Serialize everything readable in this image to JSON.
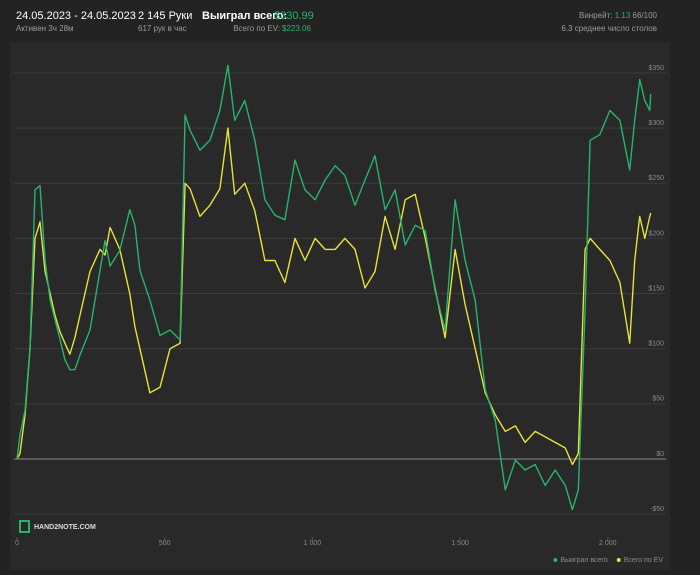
{
  "header": {
    "date_range": "24.05.2023 - 24.05.2023",
    "active": "Активен 3ч 28м",
    "hands": "2 145 Руки",
    "hands_per_hour": "617 рук в час",
    "won_label": "Выиграл всего:",
    "won_value": "$330.99",
    "ev_label": "Всего по EV:",
    "ev_value": "$223.06",
    "winrate_label": "Винрейт:",
    "winrate_value": "1.13",
    "winrate_extra": "66/100",
    "tables": "6.3 среднее число столов"
  },
  "logo": "HAND2NOTE.COM",
  "chart_data": {
    "type": "line",
    "x": [
      0,
      10,
      27,
      44,
      61,
      78,
      95,
      112,
      129,
      146,
      162,
      179,
      196,
      213,
      247,
      281,
      298,
      315,
      348,
      382,
      399,
      416,
      450,
      484,
      518,
      552,
      569,
      586,
      619,
      653,
      687,
      714,
      737,
      771,
      805,
      839,
      873,
      907,
      941,
      975,
      1009,
      1043,
      1077,
      1110,
      1144,
      1178,
      1212,
      1246,
      1280,
      1314,
      1348,
      1382,
      1415,
      1449,
      1483,
      1517,
      1551,
      1585,
      1619,
      1653,
      1687,
      1720,
      1754,
      1788,
      1822,
      1856,
      1880,
      1900,
      1923,
      1940,
      1973,
      2007,
      2041,
      2074,
      2091,
      2108,
      2125,
      2142,
      2145
    ],
    "series": [
      {
        "name": "Выиграл всего",
        "color": "#27b36e",
        "values": [
          0,
          22,
          44,
          99,
          244,
          248,
          180,
          144,
          126,
          108,
          90,
          81,
          81,
          94,
          117,
          171,
          198,
          175,
          189,
          226,
          212,
          171,
          144,
          112,
          117,
          108,
          312,
          298,
          280,
          289,
          316,
          357,
          307,
          325,
          289,
          235,
          221,
          217,
          271,
          244,
          235,
          253,
          266,
          257,
          230,
          253,
          275,
          226,
          244,
          194,
          212,
          207,
          153,
          117,
          235,
          180,
          144,
          63,
          35,
          -28,
          -1,
          -10,
          -5,
          -24,
          -10,
          -24,
          -46,
          -28,
          135,
          289,
          294,
          316,
          307,
          262,
          307,
          344,
          325,
          316,
          330.99
        ]
      },
      {
        "name": "Всего по EV",
        "color": "#e6e238",
        "values": [
          0,
          5,
          40,
          100,
          200,
          215,
          170,
          150,
          130,
          115,
          105,
          95,
          110,
          130,
          170,
          190,
          185,
          210,
          190,
          150,
          120,
          100,
          60,
          65,
          100,
          105,
          250,
          245,
          220,
          230,
          245,
          300,
          240,
          250,
          225,
          180,
          180,
          160,
          200,
          180,
          200,
          190,
          190,
          200,
          190,
          155,
          170,
          220,
          190,
          235,
          240,
          200,
          155,
          110,
          190,
          140,
          100,
          60,
          40,
          25,
          30,
          15,
          25,
          20,
          15,
          10,
          -5,
          5,
          190,
          200,
          190,
          180,
          160,
          105,
          180,
          220,
          200,
          220,
          223.06
        ]
      }
    ],
    "xlim": [
      0,
      2180
    ],
    "ylim": [
      -71,
      375
    ],
    "xticks": [
      0,
      500,
      {
        "value": 1000,
        "label": "1 000"
      },
      {
        "value": 1500,
        "label": "1 500"
      },
      {
        "value": 2000,
        "label": "2 000"
      }
    ],
    "yticks": [
      {
        "value": -50,
        "label": "-$50"
      },
      {
        "value": 0,
        "label": "$0"
      },
      {
        "value": 50,
        "label": "$50"
      },
      {
        "value": 100,
        "label": "$100"
      },
      {
        "value": 150,
        "label": "$150"
      },
      {
        "value": 200,
        "label": "$200"
      },
      {
        "value": 250,
        "label": "$250"
      },
      {
        "value": 300,
        "label": "$300"
      },
      {
        "value": 350,
        "label": "$350"
      }
    ],
    "grid": true,
    "legend": "bottom-right"
  }
}
